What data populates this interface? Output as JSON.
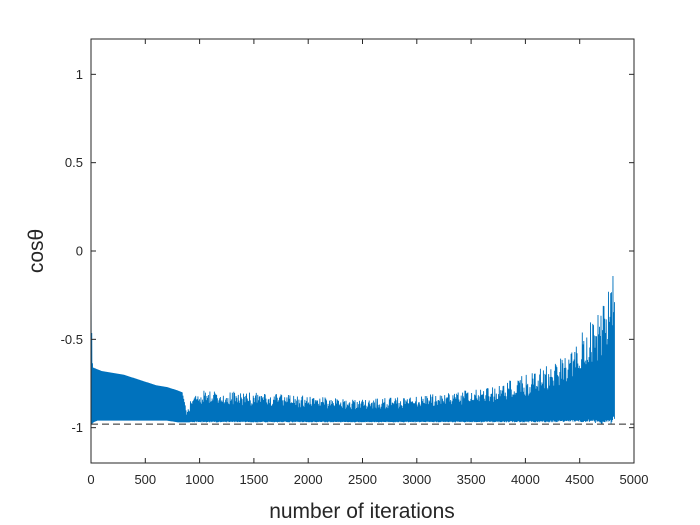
{
  "chart_data": {
    "type": "line",
    "title": "",
    "xlabel": "number of iterations",
    "ylabel": "cosθ",
    "xlim": [
      0,
      5000
    ],
    "ylim": [
      -1.2,
      1.2
    ],
    "x_ticks": [
      0,
      500,
      1000,
      1500,
      2000,
      2500,
      3000,
      3500,
      4000,
      4500,
      5000
    ],
    "x_tick_labels": [
      "0",
      "500",
      "1000",
      "1500",
      "2000",
      "2500",
      "3000",
      "3500",
      "4000",
      "4500",
      "5000"
    ],
    "y_ticks": [
      -1,
      -0.5,
      0,
      0.5,
      1
    ],
    "y_tick_labels": [
      "-1",
      "-0.5",
      "0",
      "0.5",
      "1"
    ],
    "grid": false,
    "legend": "none",
    "series": [
      {
        "style": "solid",
        "color": "#0072BD",
        "oscillating": true,
        "x": [
          0,
          10,
          20,
          60,
          100,
          200,
          300,
          400,
          500,
          600,
          700,
          800,
          840,
          870,
          880,
          920,
          960,
          1000,
          1200,
          1500,
          2000,
          2500,
          3000,
          3300,
          3500,
          3700,
          3900,
          4000,
          4100,
          4200,
          4300,
          4400,
          4500,
          4600,
          4700,
          4750,
          4800,
          4820
        ],
        "upper": [
          -0.12,
          -0.62,
          -0.66,
          -0.67,
          -0.68,
          -0.69,
          -0.7,
          -0.72,
          -0.74,
          -0.76,
          -0.77,
          -0.79,
          -0.8,
          -0.88,
          -0.93,
          -0.84,
          -0.79,
          -0.78,
          -0.79,
          -0.8,
          -0.82,
          -0.84,
          -0.82,
          -0.8,
          -0.78,
          -0.76,
          -0.72,
          -0.7,
          -0.68,
          -0.64,
          -0.6,
          -0.54,
          -0.48,
          -0.4,
          -0.3,
          -0.22,
          -0.05,
          -0.05
        ],
        "lower": [
          -0.98,
          -0.98,
          -0.97,
          -0.96,
          -0.96,
          -0.96,
          -0.96,
          -0.96,
          -0.96,
          -0.96,
          -0.96,
          -0.97,
          -0.97,
          -0.97,
          -0.97,
          -0.97,
          -0.97,
          -0.97,
          -0.97,
          -0.97,
          -0.97,
          -0.97,
          -0.97,
          -0.97,
          -0.97,
          -0.97,
          -0.97,
          -0.97,
          -0.97,
          -0.97,
          -0.97,
          -0.97,
          -0.97,
          -0.97,
          -0.98,
          -0.98,
          -0.98,
          -0.95
        ]
      },
      {
        "style": "dashed",
        "color": "#262626",
        "x": [
          0,
          5000
        ],
        "y": [
          -0.98,
          -0.98
        ]
      }
    ]
  }
}
